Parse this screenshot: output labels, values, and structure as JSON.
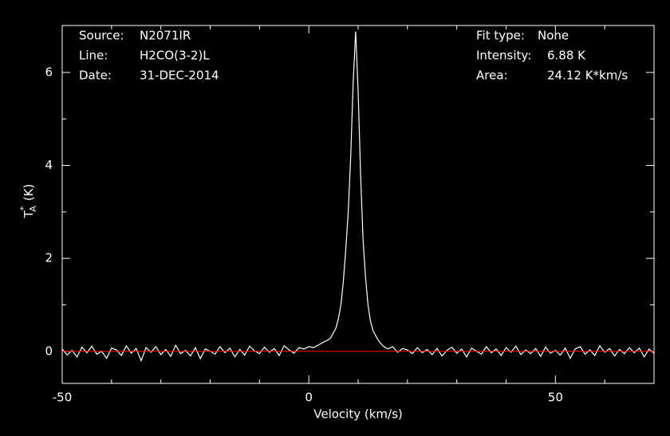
{
  "chart_data": {
    "type": "line",
    "info_left": [
      {
        "label": "Source:",
        "value": "N2071IR"
      },
      {
        "label": "Line:",
        "value": "H2CO(3-2)L"
      },
      {
        "label": "Date:",
        "value": "31-DEC-2014"
      }
    ],
    "info_right": [
      {
        "label": "Fit type:",
        "value": "None"
      },
      {
        "label": "Intensity:",
        "value": "6.88 K"
      },
      {
        "label": "Area:",
        "value": "24.12 K*km/s"
      }
    ],
    "xlabel": "Velocity (km/s)",
    "ylabel": {
      "main": "T",
      "sup": "*",
      "sub": "A",
      "unit": "(K)"
    },
    "xlim": [
      -50,
      70
    ],
    "ylim": [
      -0.69,
      7.01
    ],
    "xticks": [
      -50,
      0,
      50
    ],
    "xticks_minor": [
      -40,
      -30,
      -20,
      -10,
      10,
      20,
      30,
      40,
      60
    ],
    "yticks": [
      0,
      2,
      4,
      6
    ],
    "yticks_minor": [
      1,
      3,
      5
    ],
    "baseline_color": "#ff0000",
    "x": [
      -50,
      -49,
      -48,
      -47,
      -46,
      -45,
      -44,
      -43,
      -42,
      -41,
      -40,
      -39,
      -38,
      -37,
      -36,
      -35,
      -34,
      -33,
      -32,
      -31,
      -30,
      -29,
      -28,
      -27,
      -26,
      -25,
      -24,
      -23,
      -22,
      -21,
      -20,
      -19,
      -18,
      -17,
      -16,
      -15,
      -14,
      -13,
      -12,
      -11,
      -10,
      -9,
      -8,
      -7,
      -6,
      -5,
      -4,
      -3,
      -2,
      -1,
      0,
      1,
      2,
      3,
      4,
      4.5,
      5,
      5.5,
      6,
      6.5,
      7,
      7.5,
      8,
      8.5,
      9,
      9.5,
      10,
      10.5,
      11,
      11.5,
      12,
      12.5,
      13,
      13.5,
      14,
      14.5,
      15,
      16,
      17,
      18,
      19,
      20,
      21,
      22,
      23,
      24,
      25,
      26,
      27,
      28,
      29,
      30,
      31,
      32,
      33,
      34,
      35,
      36,
      37,
      38,
      39,
      40,
      41,
      42,
      43,
      44,
      45,
      46,
      47,
      48,
      49,
      50,
      51,
      52,
      53,
      54,
      55,
      56,
      57,
      58,
      59,
      60,
      61,
      62,
      63,
      64,
      65,
      66,
      67,
      68,
      69,
      70
    ],
    "series": [
      {
        "name": "spectrum",
        "color": "#ffffff",
        "values": [
          0.05,
          -0.08,
          0.02,
          -0.12,
          0.09,
          -0.03,
          0.11,
          -0.06,
          0.0,
          -0.15,
          0.07,
          0.03,
          -0.09,
          0.12,
          -0.04,
          0.06,
          -0.2,
          0.08,
          -0.02,
          0.1,
          -0.07,
          0.04,
          -0.11,
          0.13,
          -0.05,
          0.02,
          -0.1,
          0.08,
          -0.16,
          0.05,
          0.0,
          -0.06,
          0.1,
          -0.03,
          0.07,
          -0.12,
          0.04,
          -0.08,
          0.11,
          0.01,
          -0.05,
          0.09,
          -0.02,
          0.06,
          -0.09,
          0.12,
          0.03,
          -0.04,
          0.08,
          0.05,
          0.1,
          0.08,
          0.14,
          0.2,
          0.25,
          0.3,
          0.4,
          0.5,
          0.7,
          1.0,
          1.5,
          2.2,
          3.0,
          4.2,
          5.8,
          6.88,
          5.6,
          3.8,
          2.4,
          1.6,
          1.0,
          0.65,
          0.45,
          0.35,
          0.25,
          0.18,
          0.12,
          0.05,
          0.1,
          -0.02,
          0.06,
          0.03,
          -0.05,
          0.08,
          -0.03,
          0.04,
          -0.07,
          0.06,
          -0.1,
          0.02,
          0.09,
          -0.04,
          0.05,
          -0.12,
          0.07,
          0.0,
          -0.06,
          0.1,
          -0.03,
          0.05,
          -0.09,
          0.08,
          -0.02,
          0.11,
          -0.07,
          0.03,
          -0.05,
          0.06,
          -0.11,
          0.09,
          -0.04,
          0.02,
          -0.08,
          0.07,
          -0.15,
          0.05,
          0.1,
          -0.06,
          0.03,
          -0.09,
          0.12,
          -0.02,
          0.06,
          -0.1,
          0.04,
          -0.05,
          0.08,
          -0.03,
          0.07,
          -0.12,
          0.05,
          -0.04
        ]
      }
    ]
  }
}
